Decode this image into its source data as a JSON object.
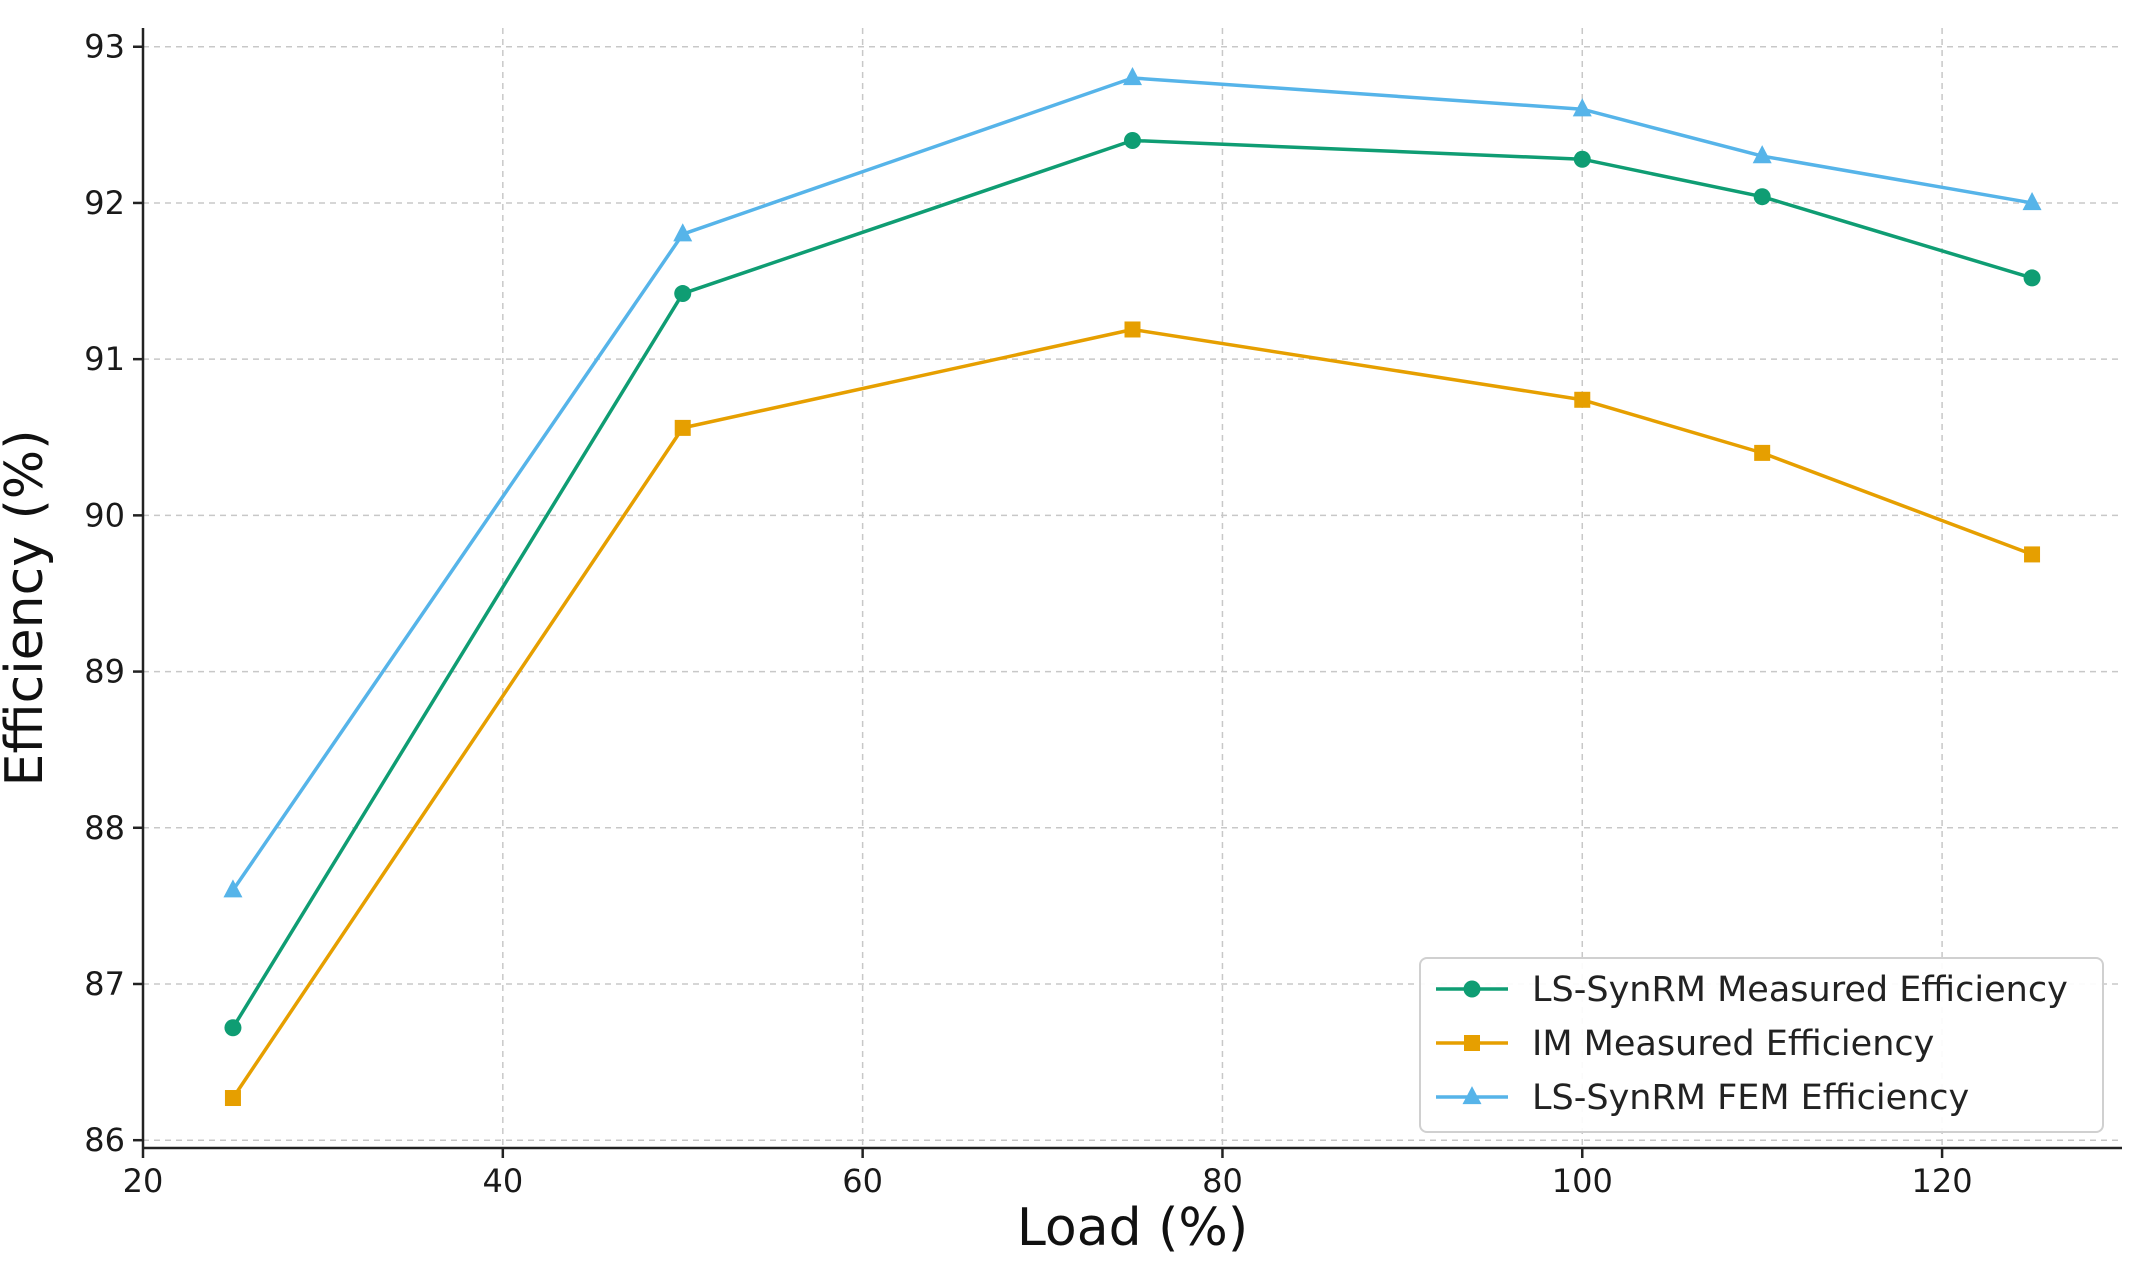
{
  "chart_data": {
    "type": "line",
    "title": "",
    "xlabel": "Load (%)",
    "ylabel": "Efficiency (%)",
    "xlim": [
      20,
      130
    ],
    "ylim": [
      85.95,
      93.12
    ],
    "xticks": [
      20,
      40,
      60,
      80,
      100,
      120
    ],
    "yticks": [
      86,
      87,
      88,
      89,
      90,
      91,
      92,
      93
    ],
    "grid": true,
    "legend_position": "bottom-right",
    "x": [
      25,
      50,
      75,
      100,
      110,
      125
    ],
    "series": [
      {
        "name": "LS-SynRM Measured Efficiency",
        "marker": "circle",
        "color": "#0f9d73",
        "values": [
          86.72,
          91.42,
          92.4,
          92.28,
          92.04,
          91.52
        ]
      },
      {
        "name": "IM Measured Efficiency",
        "marker": "square",
        "color": "#e69f00",
        "values": [
          86.27,
          90.56,
          91.19,
          90.74,
          90.4,
          89.75
        ]
      },
      {
        "name": "LS-SynRM FEM Efficiency",
        "marker": "triangle",
        "color": "#56b4e9",
        "values": [
          87.6,
          91.8,
          92.8,
          92.6,
          92.3,
          92.0
        ]
      }
    ]
  }
}
